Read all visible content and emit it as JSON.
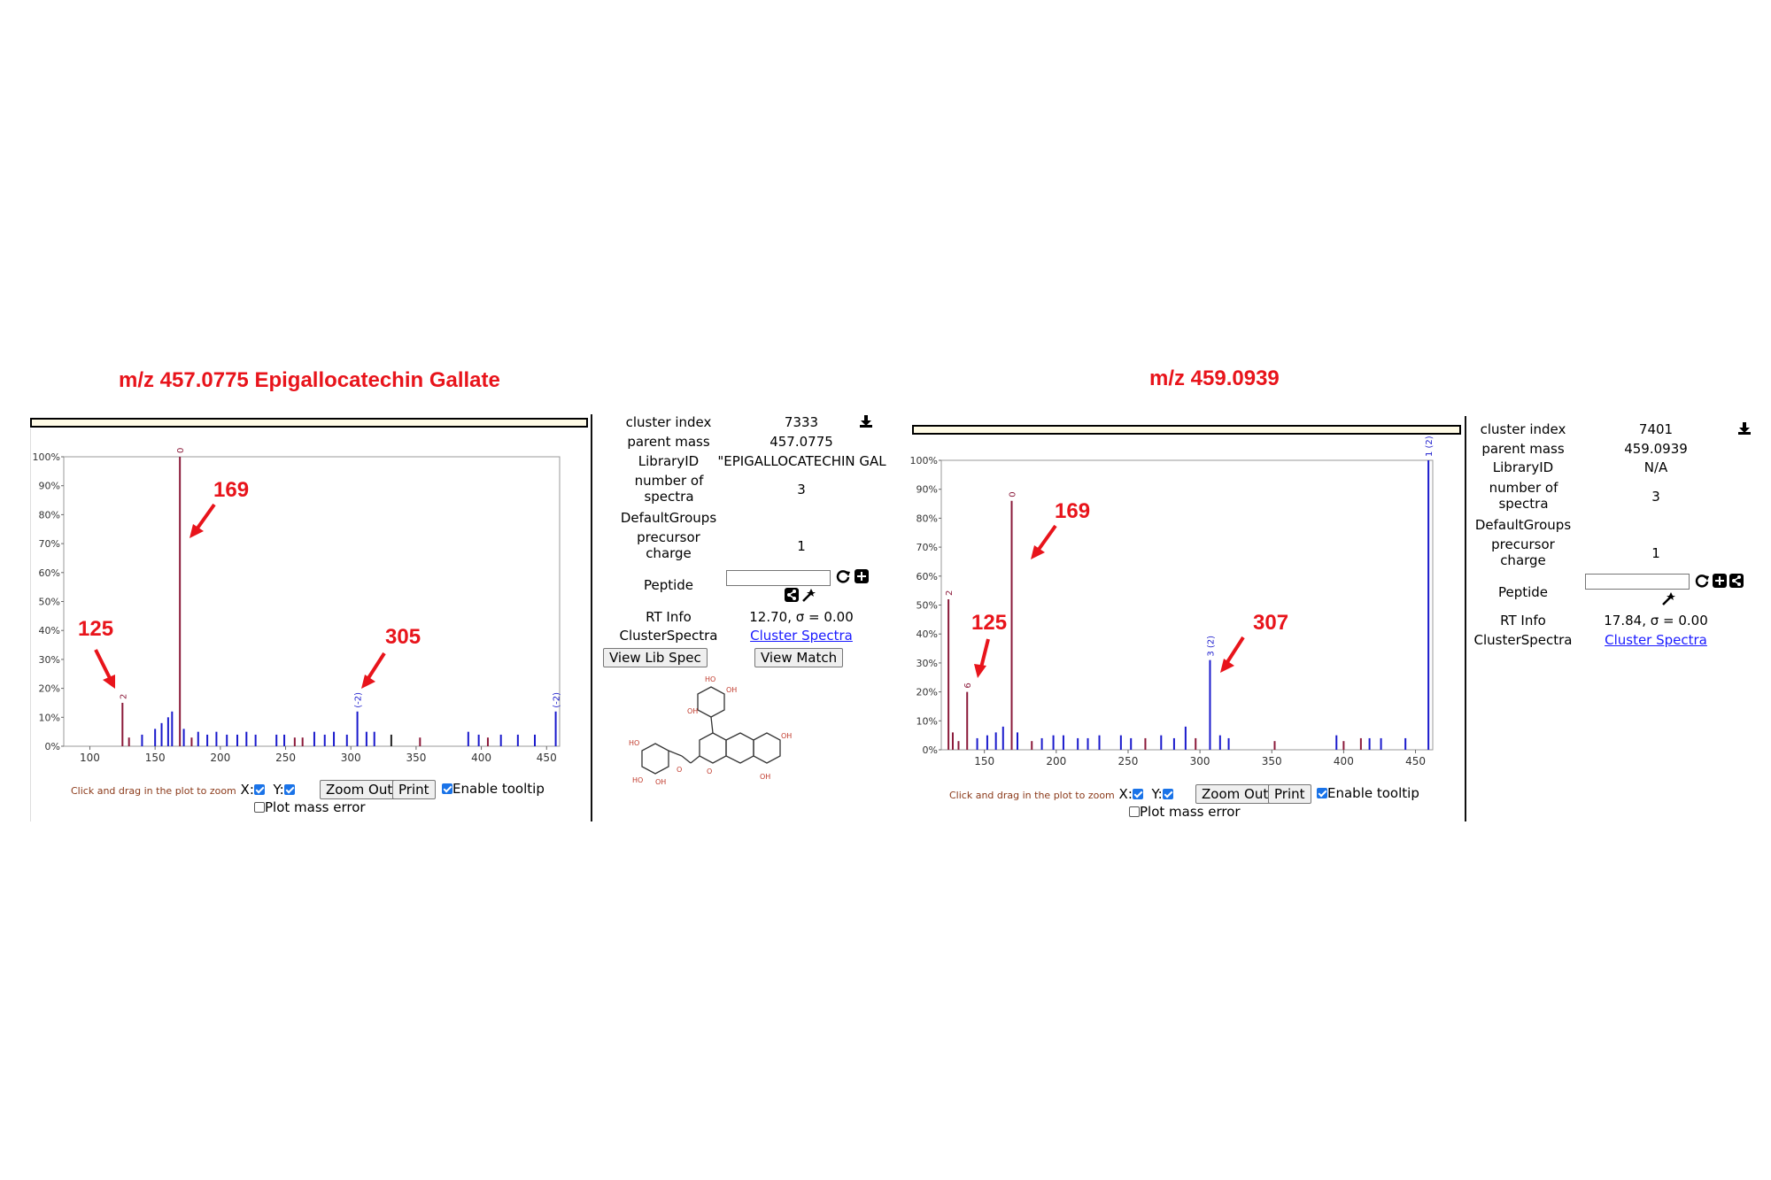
{
  "left": {
    "title": "m/z 457.0775 Epigallocatechin Gallate",
    "info": {
      "cluster_index_label": "cluster index",
      "cluster_index": "7333",
      "parent_mass_label": "parent mass",
      "parent_mass": "457.0775",
      "library_id_label": "LibraryID",
      "library_id": "\"EPIGALLOCATECHIN GAL",
      "num_spectra_label": "number of spectra",
      "num_spectra": "3",
      "default_groups_label": "DefaultGroups",
      "precursor_charge_label": "precursor charge",
      "precursor_charge": "1",
      "peptide_label": "Peptide",
      "peptide_value": "",
      "rt_info_label": "RT Info",
      "rt_info": "12.70, σ = 0.00",
      "cluster_spectra_label": "ClusterSpectra",
      "cluster_spectra_link": "Cluster Spectra",
      "view_lib_spec": "View Lib Spec",
      "view_match": "View Match"
    },
    "annotations": [
      "169",
      "125",
      "305"
    ],
    "peak_labels": {
      "top": "0",
      "p125": "2",
      "p305": "(-2)",
      "right": "(-2)"
    }
  },
  "right": {
    "title": "m/z 459.0939",
    "info": {
      "cluster_index_label": "cluster index",
      "cluster_index": "7401",
      "parent_mass_label": "parent mass",
      "parent_mass": "459.0939",
      "library_id_label": "LibraryID",
      "library_id": "N/A",
      "num_spectra_label": "number of spectra",
      "num_spectra": "3",
      "default_groups_label": "DefaultGroups",
      "precursor_charge_label": "precursor charge",
      "precursor_charge": "1",
      "peptide_label": "Peptide",
      "peptide_value": "",
      "rt_info_label": "RT Info",
      "rt_info": "17.84, σ = 0.00",
      "cluster_spectra_label": "ClusterSpectra",
      "cluster_spectra_link": "Cluster Spectra"
    },
    "annotations": [
      "169",
      "125",
      "307"
    ],
    "peak_labels": {
      "p169": "0",
      "p125": "2",
      "p138": "6",
      "p307": "3 (2)",
      "right": "1 (2)"
    }
  },
  "controls": {
    "hint": "Click and drag in the plot to zoom",
    "x_label": "X:",
    "y_label": "Y:",
    "zoom_out": "Zoom Out",
    "print": "Print",
    "enable_tooltip": "Enable tooltip",
    "plot_mass_error": "Plot mass error"
  },
  "chart_data": [
    {
      "type": "bar",
      "title": "m/z 457.0775 Epigallocatechin Gallate",
      "xlim": [
        80,
        460
      ],
      "ylim": [
        0,
        100
      ],
      "x_ticks": [
        "100",
        "150",
        "200",
        "250",
        "300",
        "350",
        "400",
        "450"
      ],
      "y_ticks": [
        "0%",
        "10%",
        "20%",
        "30%",
        "40%",
        "50%",
        "60%",
        "70%",
        "80%",
        "90%",
        "100%"
      ],
      "peaks": [
        {
          "x": 125,
          "y": 15,
          "c": "m"
        },
        {
          "x": 130,
          "y": 3,
          "c": "m"
        },
        {
          "x": 140,
          "y": 4,
          "c": "b"
        },
        {
          "x": 150,
          "y": 6,
          "c": "b"
        },
        {
          "x": 155,
          "y": 8,
          "c": "b"
        },
        {
          "x": 160,
          "y": 10,
          "c": "b"
        },
        {
          "x": 163,
          "y": 12,
          "c": "b"
        },
        {
          "x": 169,
          "y": 100,
          "c": "m"
        },
        {
          "x": 172,
          "y": 6,
          "c": "b"
        },
        {
          "x": 178,
          "y": 3,
          "c": "m"
        },
        {
          "x": 183,
          "y": 5,
          "c": "b"
        },
        {
          "x": 190,
          "y": 4,
          "c": "b"
        },
        {
          "x": 197,
          "y": 5,
          "c": "b"
        },
        {
          "x": 205,
          "y": 4,
          "c": "b"
        },
        {
          "x": 213,
          "y": 4,
          "c": "b"
        },
        {
          "x": 220,
          "y": 5,
          "c": "b"
        },
        {
          "x": 227,
          "y": 4,
          "c": "b"
        },
        {
          "x": 243,
          "y": 4,
          "c": "b"
        },
        {
          "x": 249,
          "y": 4,
          "c": "b"
        },
        {
          "x": 257,
          "y": 3,
          "c": "m"
        },
        {
          "x": 263,
          "y": 3,
          "c": "m"
        },
        {
          "x": 272,
          "y": 5,
          "c": "b"
        },
        {
          "x": 280,
          "y": 4,
          "c": "b"
        },
        {
          "x": 287,
          "y": 5,
          "c": "b"
        },
        {
          "x": 297,
          "y": 4,
          "c": "b"
        },
        {
          "x": 305,
          "y": 12,
          "c": "b"
        },
        {
          "x": 312,
          "y": 5,
          "c": "b"
        },
        {
          "x": 318,
          "y": 5,
          "c": "b"
        },
        {
          "x": 331,
          "y": 4,
          "c": "k"
        },
        {
          "x": 353,
          "y": 3,
          "c": "m"
        },
        {
          "x": 390,
          "y": 5,
          "c": "b"
        },
        {
          "x": 398,
          "y": 4,
          "c": "b"
        },
        {
          "x": 405,
          "y": 3,
          "c": "m"
        },
        {
          "x": 415,
          "y": 4,
          "c": "b"
        },
        {
          "x": 428,
          "y": 4,
          "c": "b"
        },
        {
          "x": 441,
          "y": 4,
          "c": "b"
        },
        {
          "x": 457,
          "y": 12,
          "c": "b"
        }
      ]
    },
    {
      "type": "bar",
      "title": "m/z 459.0939",
      "xlim": [
        120,
        462
      ],
      "ylim": [
        0,
        100
      ],
      "x_ticks": [
        "150",
        "200",
        "250",
        "300",
        "350",
        "400",
        "450"
      ],
      "y_ticks": [
        "0%",
        "10%",
        "20%",
        "30%",
        "40%",
        "50%",
        "60%",
        "70%",
        "80%",
        "90%",
        "100%"
      ],
      "peaks": [
        {
          "x": 125,
          "y": 52,
          "c": "m"
        },
        {
          "x": 128,
          "y": 6,
          "c": "m"
        },
        {
          "x": 132,
          "y": 3,
          "c": "m"
        },
        {
          "x": 138,
          "y": 20,
          "c": "m"
        },
        {
          "x": 145,
          "y": 4,
          "c": "b"
        },
        {
          "x": 152,
          "y": 5,
          "c": "b"
        },
        {
          "x": 158,
          "y": 6,
          "c": "b"
        },
        {
          "x": 163,
          "y": 8,
          "c": "b"
        },
        {
          "x": 169,
          "y": 86,
          "c": "m"
        },
        {
          "x": 173,
          "y": 6,
          "c": "b"
        },
        {
          "x": 183,
          "y": 3,
          "c": "m"
        },
        {
          "x": 190,
          "y": 4,
          "c": "b"
        },
        {
          "x": 198,
          "y": 5,
          "c": "b"
        },
        {
          "x": 205,
          "y": 5,
          "c": "b"
        },
        {
          "x": 215,
          "y": 4,
          "c": "b"
        },
        {
          "x": 222,
          "y": 4,
          "c": "b"
        },
        {
          "x": 230,
          "y": 5,
          "c": "b"
        },
        {
          "x": 245,
          "y": 5,
          "c": "b"
        },
        {
          "x": 252,
          "y": 4,
          "c": "b"
        },
        {
          "x": 262,
          "y": 4,
          "c": "m"
        },
        {
          "x": 273,
          "y": 5,
          "c": "b"
        },
        {
          "x": 282,
          "y": 4,
          "c": "b"
        },
        {
          "x": 290,
          "y": 8,
          "c": "b"
        },
        {
          "x": 297,
          "y": 4,
          "c": "m"
        },
        {
          "x": 307,
          "y": 31,
          "c": "b"
        },
        {
          "x": 314,
          "y": 5,
          "c": "b"
        },
        {
          "x": 320,
          "y": 4,
          "c": "b"
        },
        {
          "x": 352,
          "y": 3,
          "c": "m"
        },
        {
          "x": 395,
          "y": 5,
          "c": "b"
        },
        {
          "x": 400,
          "y": 3,
          "c": "m"
        },
        {
          "x": 412,
          "y": 4,
          "c": "m"
        },
        {
          "x": 418,
          "y": 4,
          "c": "b"
        },
        {
          "x": 426,
          "y": 4,
          "c": "b"
        },
        {
          "x": 443,
          "y": 4,
          "c": "b"
        },
        {
          "x": 459,
          "y": 100,
          "c": "b"
        }
      ]
    }
  ]
}
